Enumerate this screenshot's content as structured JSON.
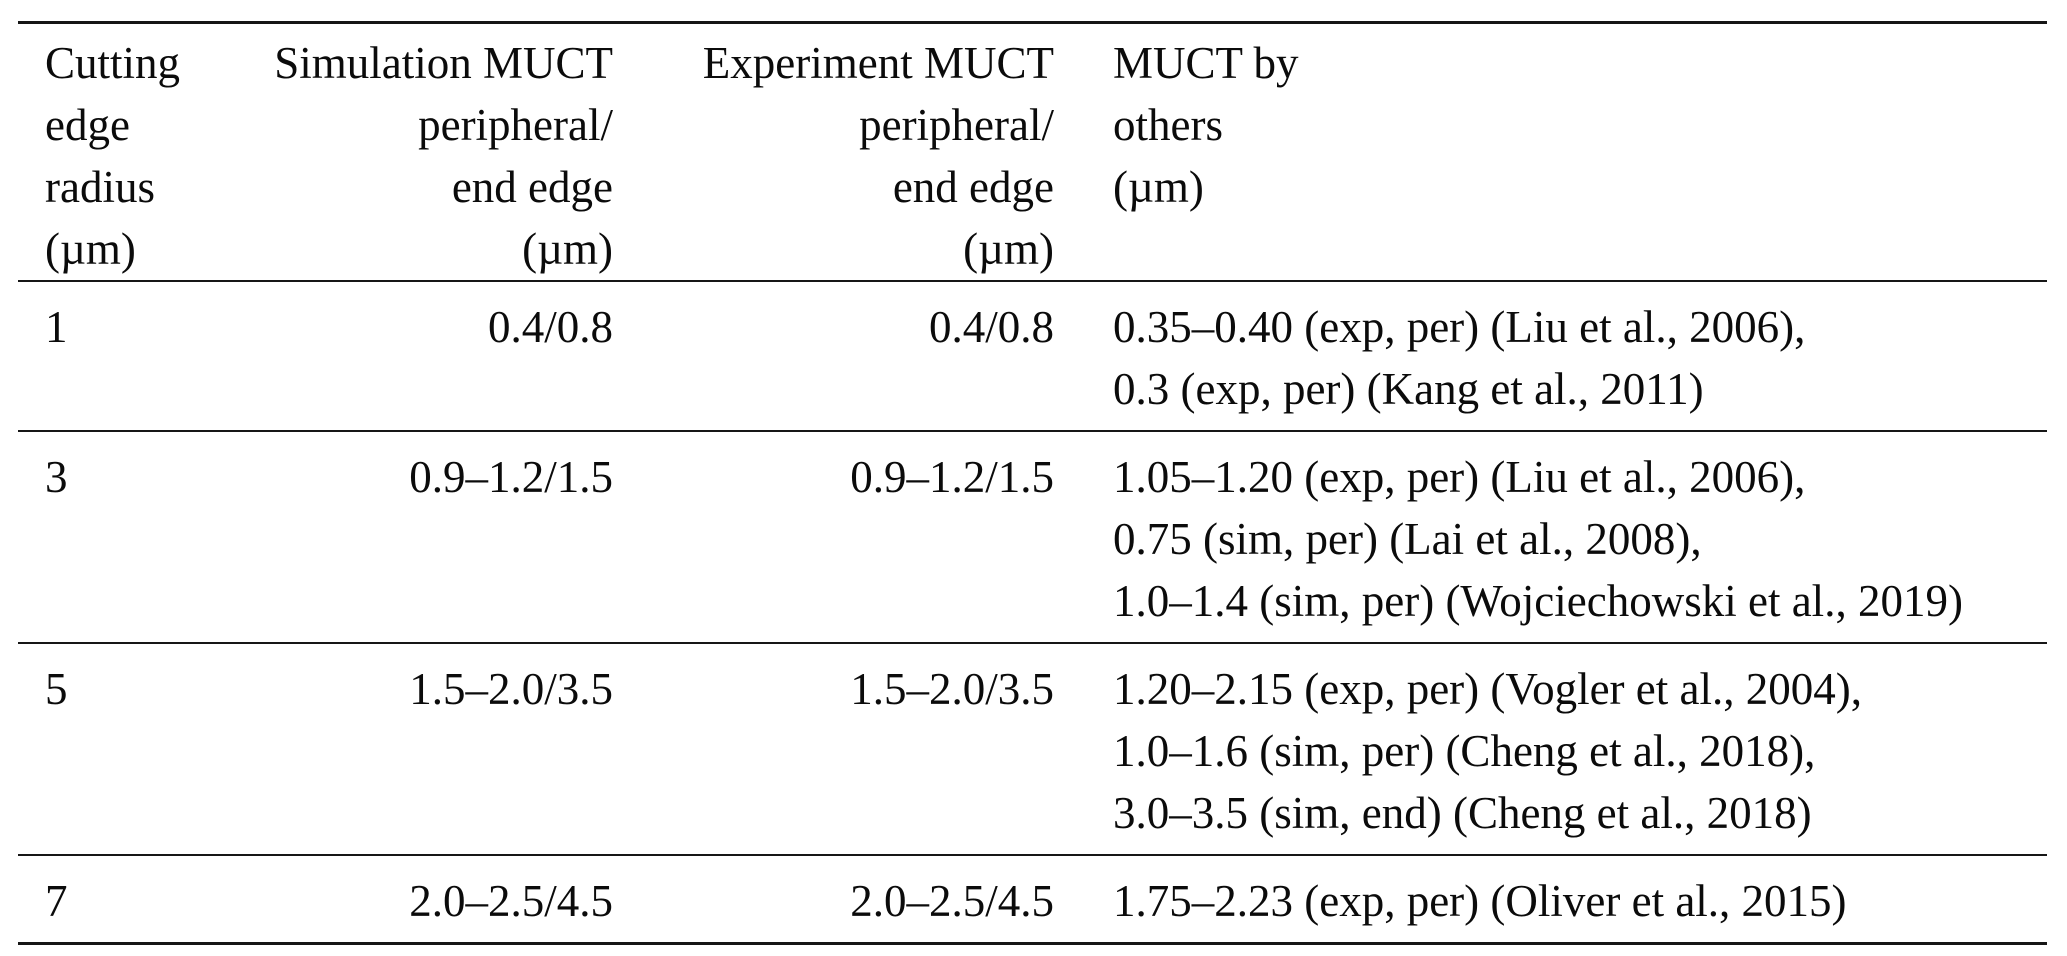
{
  "table": {
    "title": "MUCT comparison table",
    "columns": [
      {
        "id": "radius",
        "align": "left",
        "header_lines": [
          "Cutting",
          "edge",
          "radius",
          "(µm)"
        ]
      },
      {
        "id": "sim",
        "align": "right",
        "header_lines": [
          "Simulation MUCT",
          "peripheral/",
          "end edge",
          "(µm)"
        ]
      },
      {
        "id": "exp",
        "align": "right",
        "header_lines": [
          "Experiment MUCT",
          "peripheral/",
          "end edge",
          "(µm)"
        ]
      },
      {
        "id": "others",
        "align": "left",
        "header_lines": [
          "MUCT by",
          "others",
          "(µm)"
        ]
      }
    ],
    "rows": [
      {
        "radius": "1",
        "sim": "0.4/0.8",
        "exp": "0.4/0.8",
        "others": [
          "0.35–0.40 (exp, per) (Liu et al., 2006),",
          "0.3 (exp, per) (Kang et al., 2011)"
        ]
      },
      {
        "radius": "3",
        "sim": "0.9–1.2/1.5",
        "exp": "0.9–1.2/1.5",
        "others": [
          "1.05–1.20 (exp, per) (Liu et al., 2006),",
          "0.75 (sim, per) (Lai et al., 2008),",
          "1.0–1.4 (sim, per) (Wojciechowski et al., 2019)"
        ]
      },
      {
        "radius": "5",
        "sim": "1.5–2.0/3.5",
        "exp": "1.5–2.0/3.5",
        "others": [
          "1.20–2.15 (exp, per) (Vogler et al., 2004),",
          "1.0–1.6 (sim, per) (Cheng et al., 2018),",
          "3.0–3.5 (sim, end) (Cheng et al., 2018)"
        ]
      },
      {
        "radius": "7",
        "sim": "2.0–2.5/4.5",
        "exp": "2.0–2.5/4.5",
        "others": [
          "1.75–2.23 (exp, per) (Oliver et al., 2015)"
        ]
      }
    ]
  }
}
